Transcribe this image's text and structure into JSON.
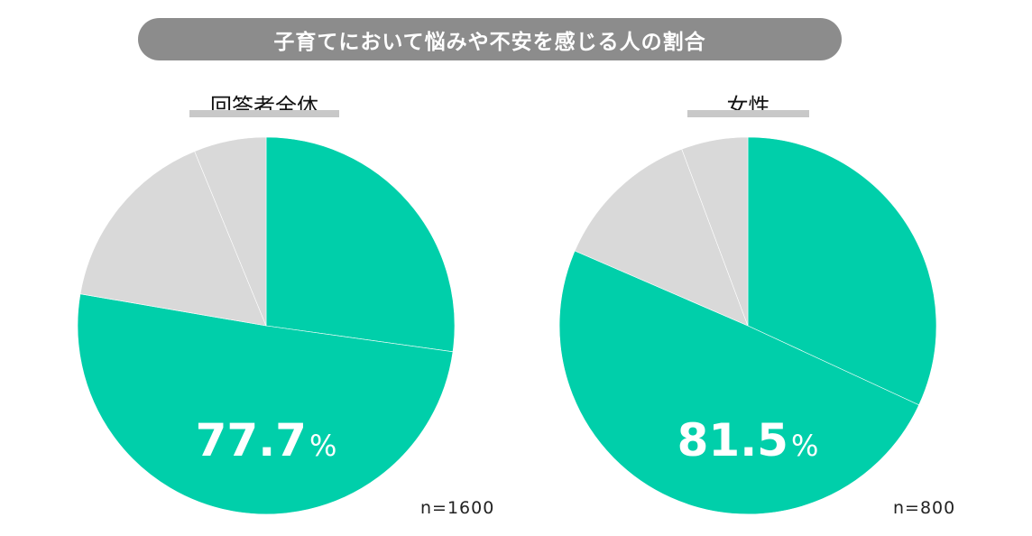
{
  "title": "子育てにおいて悩みや不安を感じる人の割合",
  "chart_data": [
    {
      "type": "pie",
      "title": "回答者全体",
      "sample": "n=1600",
      "highlight_value": "77.7",
      "highlight_unit": "%",
      "slices": [
        {
          "value": 27.2,
          "color": "#00cfaa"
        },
        {
          "value": 50.5,
          "color": "#00cfaa"
        },
        {
          "value": 16.1,
          "color": "#d9d9d9"
        },
        {
          "value": 6.2,
          "color": "#d9d9d9"
        }
      ]
    },
    {
      "type": "pie",
      "title": "女性",
      "sample": "n=800",
      "highlight_value": "81.5",
      "highlight_unit": "%",
      "slices": [
        {
          "value": 31.9,
          "color": "#00cfaa"
        },
        {
          "value": 49.6,
          "color": "#00cfaa"
        },
        {
          "value": 12.8,
          "color": "#d9d9d9"
        },
        {
          "value": 5.7,
          "color": "#d9d9d9"
        }
      ]
    }
  ]
}
